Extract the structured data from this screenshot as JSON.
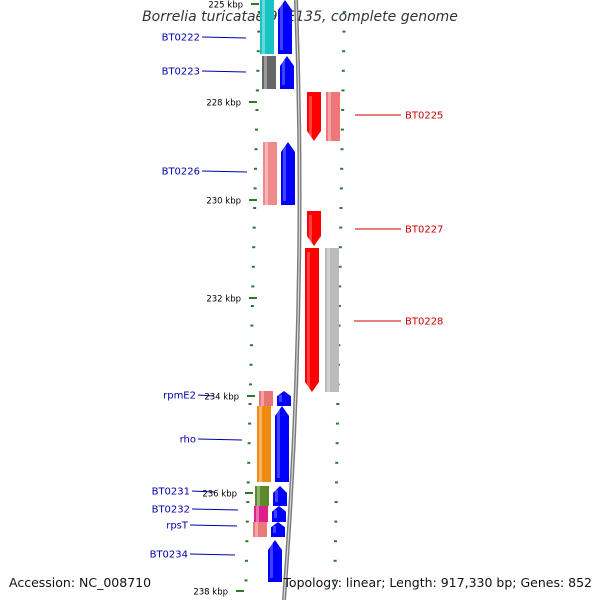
{
  "title": "Borrelia turicatae 91E135, complete genome",
  "footer": {
    "accession": "Accession: NC_008710",
    "topology": "Topology: linear; Length: 917,330 bp; Genes: 852"
  },
  "colors": {
    "forward_label": "#0000aa",
    "reverse_label": "#cc0000",
    "tick": "#2a7a2a",
    "axis": "#7a7a7a"
  },
  "ticks": [
    {
      "label": "225 kbp"
    },
    {
      "label": "228 kbp"
    },
    {
      "label": "230 kbp"
    },
    {
      "label": "232 kbp"
    },
    {
      "label": "234 kbp"
    },
    {
      "label": "236 kbp"
    },
    {
      "label": "238 kbp"
    }
  ],
  "genes": [
    {
      "label": "BT0222",
      "strand": "forward",
      "color": "#19c3c3"
    },
    {
      "label": "BT0223",
      "strand": "forward",
      "color": "#666666"
    },
    {
      "label": "BT0225",
      "strand": "reverse",
      "color": "#ef7777"
    },
    {
      "label": "BT0226",
      "strand": "forward",
      "color": "#f08a8a"
    },
    {
      "label": "BT0227",
      "strand": "reverse",
      "color": "#ff0000"
    },
    {
      "label": "BT0228",
      "strand": "reverse",
      "color": "#bbbbbb"
    },
    {
      "label": "rpmE2",
      "strand": "forward",
      "color": "#e87575"
    },
    {
      "label": "rho",
      "strand": "forward",
      "color": "#f08a10"
    },
    {
      "label": "BT0231",
      "strand": "forward",
      "color": "#5a8a2a"
    },
    {
      "label": "BT0232",
      "strand": "forward",
      "color": "#e0208a"
    },
    {
      "label": "rpsT",
      "strand": "forward",
      "color": "#e87a7a"
    },
    {
      "label": "BT0234",
      "strand": "forward",
      "color": "#0000ff"
    }
  ]
}
